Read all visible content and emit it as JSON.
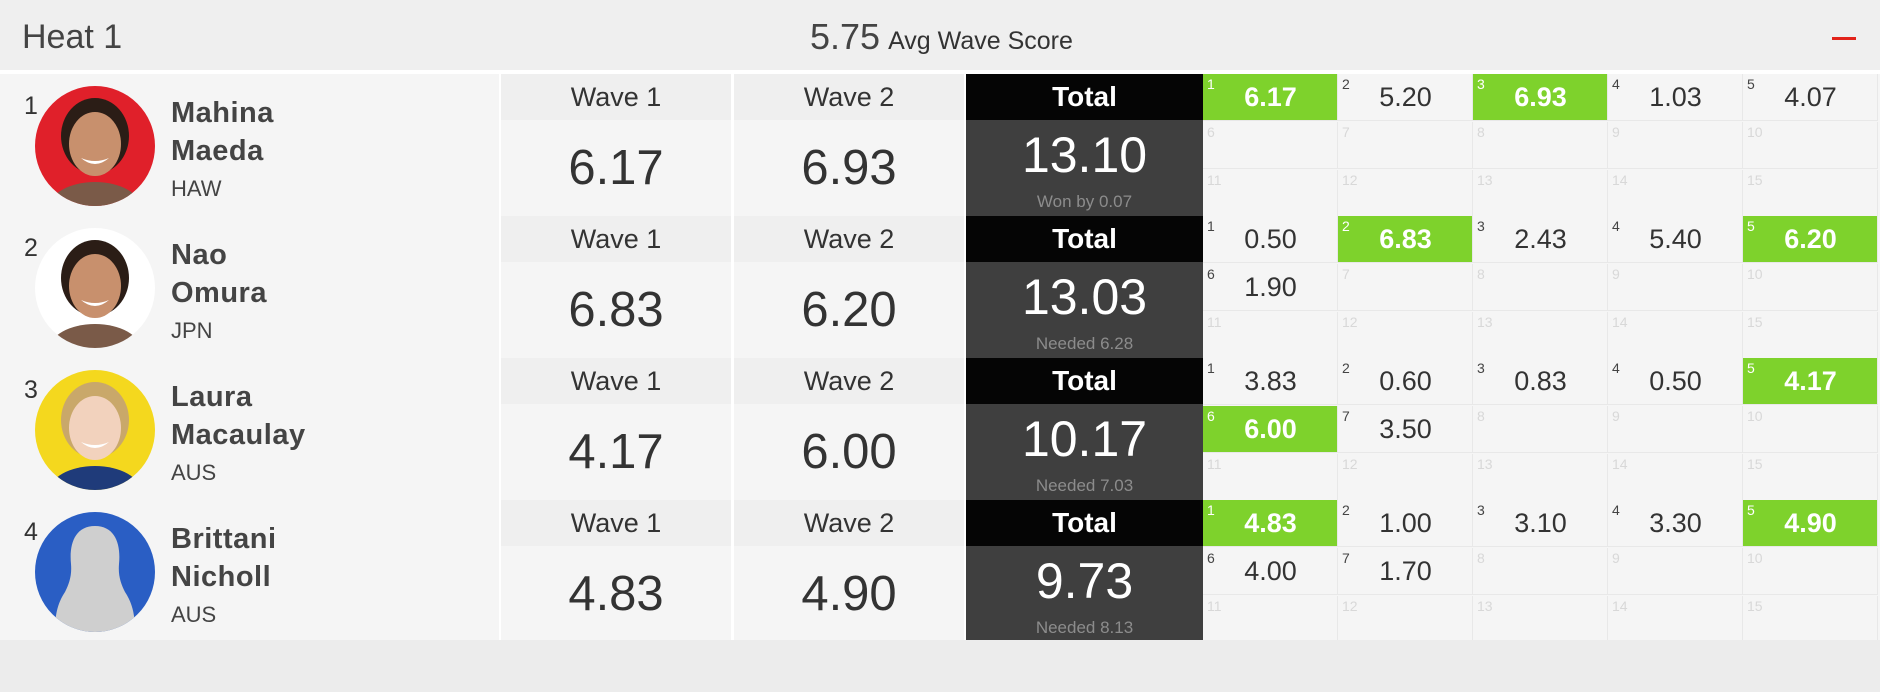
{
  "heat": {
    "title": "Heat 1",
    "avg_score": "5.75",
    "avg_label": "Avg Wave Score",
    "collapse_icon": "minus-icon",
    "colors": {
      "counting_wave": "#7ed22c",
      "total_header": "#050505",
      "total_body": "#3f3f3f",
      "collapse": "#e2231a"
    }
  },
  "athletes": [
    {
      "rank": "1",
      "first": "Mahina",
      "last": "Maeda",
      "country": "HAW",
      "avatar_bg": "#e0202a",
      "avatar_kind": "photo",
      "wave1_label": "Wave 1",
      "wave1": "6.17",
      "wave2_label": "Wave 2",
      "wave2": "6.93",
      "total_label": "Total",
      "total": "13.10",
      "note": "Won by 0.07",
      "waves": [
        {
          "n": "1",
          "score": "6.17",
          "counting": true
        },
        {
          "n": "2",
          "score": "5.20",
          "counting": false
        },
        {
          "n": "3",
          "score": "6.93",
          "counting": true
        },
        {
          "n": "4",
          "score": "1.03",
          "counting": false
        },
        {
          "n": "5",
          "score": "4.07",
          "counting": false
        },
        {
          "n": "6",
          "score": "",
          "counting": false
        },
        {
          "n": "7",
          "score": "",
          "counting": false
        },
        {
          "n": "8",
          "score": "",
          "counting": false
        },
        {
          "n": "9",
          "score": "",
          "counting": false
        },
        {
          "n": "10",
          "score": "",
          "counting": false
        },
        {
          "n": "11",
          "score": "",
          "counting": false
        },
        {
          "n": "12",
          "score": "",
          "counting": false
        },
        {
          "n": "13",
          "score": "",
          "counting": false
        },
        {
          "n": "14",
          "score": "",
          "counting": false
        },
        {
          "n": "15",
          "score": "",
          "counting": false
        }
      ]
    },
    {
      "rank": "2",
      "first": "Nao",
      "last": "Omura",
      "country": "JPN",
      "avatar_bg": "#ffffff",
      "avatar_kind": "photo",
      "wave1_label": "Wave 1",
      "wave1": "6.83",
      "wave2_label": "Wave 2",
      "wave2": "6.20",
      "total_label": "Total",
      "total": "13.03",
      "note": "Needed 6.28",
      "waves": [
        {
          "n": "1",
          "score": "0.50",
          "counting": false
        },
        {
          "n": "2",
          "score": "6.83",
          "counting": true
        },
        {
          "n": "3",
          "score": "2.43",
          "counting": false
        },
        {
          "n": "4",
          "score": "5.40",
          "counting": false
        },
        {
          "n": "5",
          "score": "6.20",
          "counting": true
        },
        {
          "n": "6",
          "score": "1.90",
          "counting": false
        },
        {
          "n": "7",
          "score": "",
          "counting": false
        },
        {
          "n": "8",
          "score": "",
          "counting": false
        },
        {
          "n": "9",
          "score": "",
          "counting": false
        },
        {
          "n": "10",
          "score": "",
          "counting": false
        },
        {
          "n": "11",
          "score": "",
          "counting": false
        },
        {
          "n": "12",
          "score": "",
          "counting": false
        },
        {
          "n": "13",
          "score": "",
          "counting": false
        },
        {
          "n": "14",
          "score": "",
          "counting": false
        },
        {
          "n": "15",
          "score": "",
          "counting": false
        }
      ]
    },
    {
      "rank": "3",
      "first": "Laura",
      "last": "Macaulay",
      "country": "AUS",
      "avatar_bg": "#f4d81e",
      "avatar_kind": "photo",
      "wave1_label": "Wave 1",
      "wave1": "4.17",
      "wave2_label": "Wave 2",
      "wave2": "6.00",
      "total_label": "Total",
      "total": "10.17",
      "note": "Needed 7.03",
      "waves": [
        {
          "n": "1",
          "score": "3.83",
          "counting": false
        },
        {
          "n": "2",
          "score": "0.60",
          "counting": false
        },
        {
          "n": "3",
          "score": "0.83",
          "counting": false
        },
        {
          "n": "4",
          "score": "0.50",
          "counting": false
        },
        {
          "n": "5",
          "score": "4.17",
          "counting": true
        },
        {
          "n": "6",
          "score": "6.00",
          "counting": true
        },
        {
          "n": "7",
          "score": "3.50",
          "counting": false
        },
        {
          "n": "8",
          "score": "",
          "counting": false
        },
        {
          "n": "9",
          "score": "",
          "counting": false
        },
        {
          "n": "10",
          "score": "",
          "counting": false
        },
        {
          "n": "11",
          "score": "",
          "counting": false
        },
        {
          "n": "12",
          "score": "",
          "counting": false
        },
        {
          "n": "13",
          "score": "",
          "counting": false
        },
        {
          "n": "14",
          "score": "",
          "counting": false
        },
        {
          "n": "15",
          "score": "",
          "counting": false
        }
      ]
    },
    {
      "rank": "4",
      "first": "Brittani",
      "last": "Nicholl",
      "country": "AUS",
      "avatar_bg": "#2a5ec4",
      "avatar_kind": "placeholder",
      "wave1_label": "Wave 1",
      "wave1": "4.83",
      "wave2_label": "Wave 2",
      "wave2": "4.90",
      "total_label": "Total",
      "total": "9.73",
      "note": "Needed 8.13",
      "waves": [
        {
          "n": "1",
          "score": "4.83",
          "counting": true
        },
        {
          "n": "2",
          "score": "1.00",
          "counting": false
        },
        {
          "n": "3",
          "score": "3.10",
          "counting": false
        },
        {
          "n": "4",
          "score": "3.30",
          "counting": false
        },
        {
          "n": "5",
          "score": "4.90",
          "counting": true
        },
        {
          "n": "6",
          "score": "4.00",
          "counting": false
        },
        {
          "n": "7",
          "score": "1.70",
          "counting": false
        },
        {
          "n": "8",
          "score": "",
          "counting": false
        },
        {
          "n": "9",
          "score": "",
          "counting": false
        },
        {
          "n": "10",
          "score": "",
          "counting": false
        },
        {
          "n": "11",
          "score": "",
          "counting": false
        },
        {
          "n": "12",
          "score": "",
          "counting": false
        },
        {
          "n": "13",
          "score": "",
          "counting": false
        },
        {
          "n": "14",
          "score": "",
          "counting": false
        },
        {
          "n": "15",
          "score": "",
          "counting": false
        }
      ]
    }
  ]
}
